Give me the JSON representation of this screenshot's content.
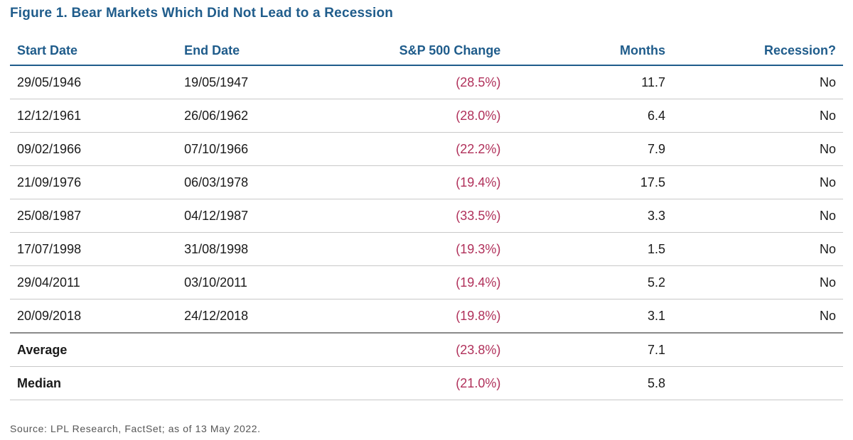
{
  "figure": {
    "title": "Figure 1. Bear Markets Which Did Not Lead to a Recession",
    "source": "Source: LPL Research, FactSet; as of 13 May 2022."
  },
  "colors": {
    "header": "#1f5c8b",
    "negative": "#b0305a"
  },
  "table": {
    "headers": {
      "start_date": "Start Date",
      "end_date": "End Date",
      "sp500_change": "S&P 500 Change",
      "months": "Months",
      "recession": "Recession?"
    },
    "rows": [
      {
        "start": "29/05/1946",
        "end": "19/05/1947",
        "change": "(28.5%)",
        "months": "11.7",
        "recession": "No"
      },
      {
        "start": "12/12/1961",
        "end": "26/06/1962",
        "change": "(28.0%)",
        "months": "6.4",
        "recession": "No"
      },
      {
        "start": "09/02/1966",
        "end": "07/10/1966",
        "change": "(22.2%)",
        "months": "7.9",
        "recession": "No"
      },
      {
        "start": "21/09/1976",
        "end": "06/03/1978",
        "change": "(19.4%)",
        "months": "17.5",
        "recession": "No"
      },
      {
        "start": "25/08/1987",
        "end": "04/12/1987",
        "change": "(33.5%)",
        "months": "3.3",
        "recession": "No"
      },
      {
        "start": "17/07/1998",
        "end": "31/08/1998",
        "change": "(19.3%)",
        "months": "1.5",
        "recession": "No"
      },
      {
        "start": "29/04/2011",
        "end": "03/10/2011",
        "change": "(19.4%)",
        "months": "5.2",
        "recession": "No"
      },
      {
        "start": "20/09/2018",
        "end": "24/12/2018",
        "change": "(19.8%)",
        "months": "3.1",
        "recession": "No"
      }
    ],
    "summary": [
      {
        "label": "Average",
        "change": "(23.8%)",
        "months": "7.1"
      },
      {
        "label": "Median",
        "change": "(21.0%)",
        "months": "5.8"
      }
    ]
  }
}
